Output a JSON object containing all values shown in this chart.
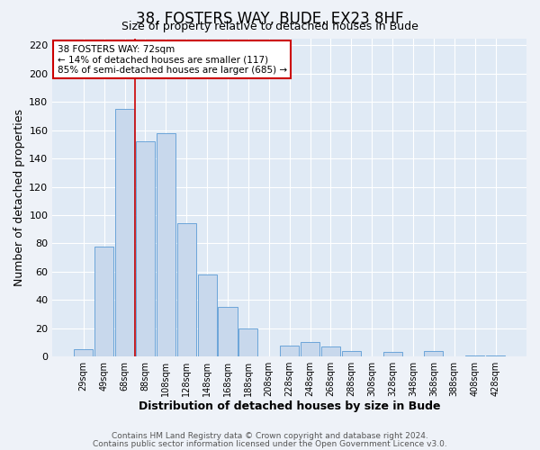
{
  "title": "38, FOSTERS WAY, BUDE, EX23 8HF",
  "subtitle": "Size of property relative to detached houses in Bude",
  "xlabel": "Distribution of detached houses by size in Bude",
  "ylabel": "Number of detached properties",
  "bar_labels": [
    "29sqm",
    "49sqm",
    "68sqm",
    "88sqm",
    "108sqm",
    "128sqm",
    "148sqm",
    "168sqm",
    "188sqm",
    "208sqm",
    "228sqm",
    "248sqm",
    "268sqm",
    "288sqm",
    "308sqm",
    "328sqm",
    "348sqm",
    "368sqm",
    "388sqm",
    "408sqm",
    "428sqm"
  ],
  "bar_values": [
    5,
    78,
    175,
    152,
    158,
    94,
    58,
    35,
    20,
    0,
    8,
    10,
    7,
    4,
    0,
    3,
    0,
    4,
    0,
    1,
    1
  ],
  "bar_color": "#c8d8ec",
  "bar_edge_color": "#5b9bd5",
  "vline_color": "#cc0000",
  "annotation_text": "38 FOSTERS WAY: 72sqm\n← 14% of detached houses are smaller (117)\n85% of semi-detached houses are larger (685) →",
  "annotation_box_color": "#ffffff",
  "annotation_box_edge": "#cc0000",
  "ylim": [
    0,
    225
  ],
  "yticks": [
    0,
    20,
    40,
    60,
    80,
    100,
    120,
    140,
    160,
    180,
    200,
    220
  ],
  "footer1": "Contains HM Land Registry data © Crown copyright and database right 2024.",
  "footer2": "Contains public sector information licensed under the Open Government Licence v3.0.",
  "bg_color": "#eef2f8",
  "plot_bg_color": "#e0eaf5",
  "grid_color": "#c8d8ec"
}
